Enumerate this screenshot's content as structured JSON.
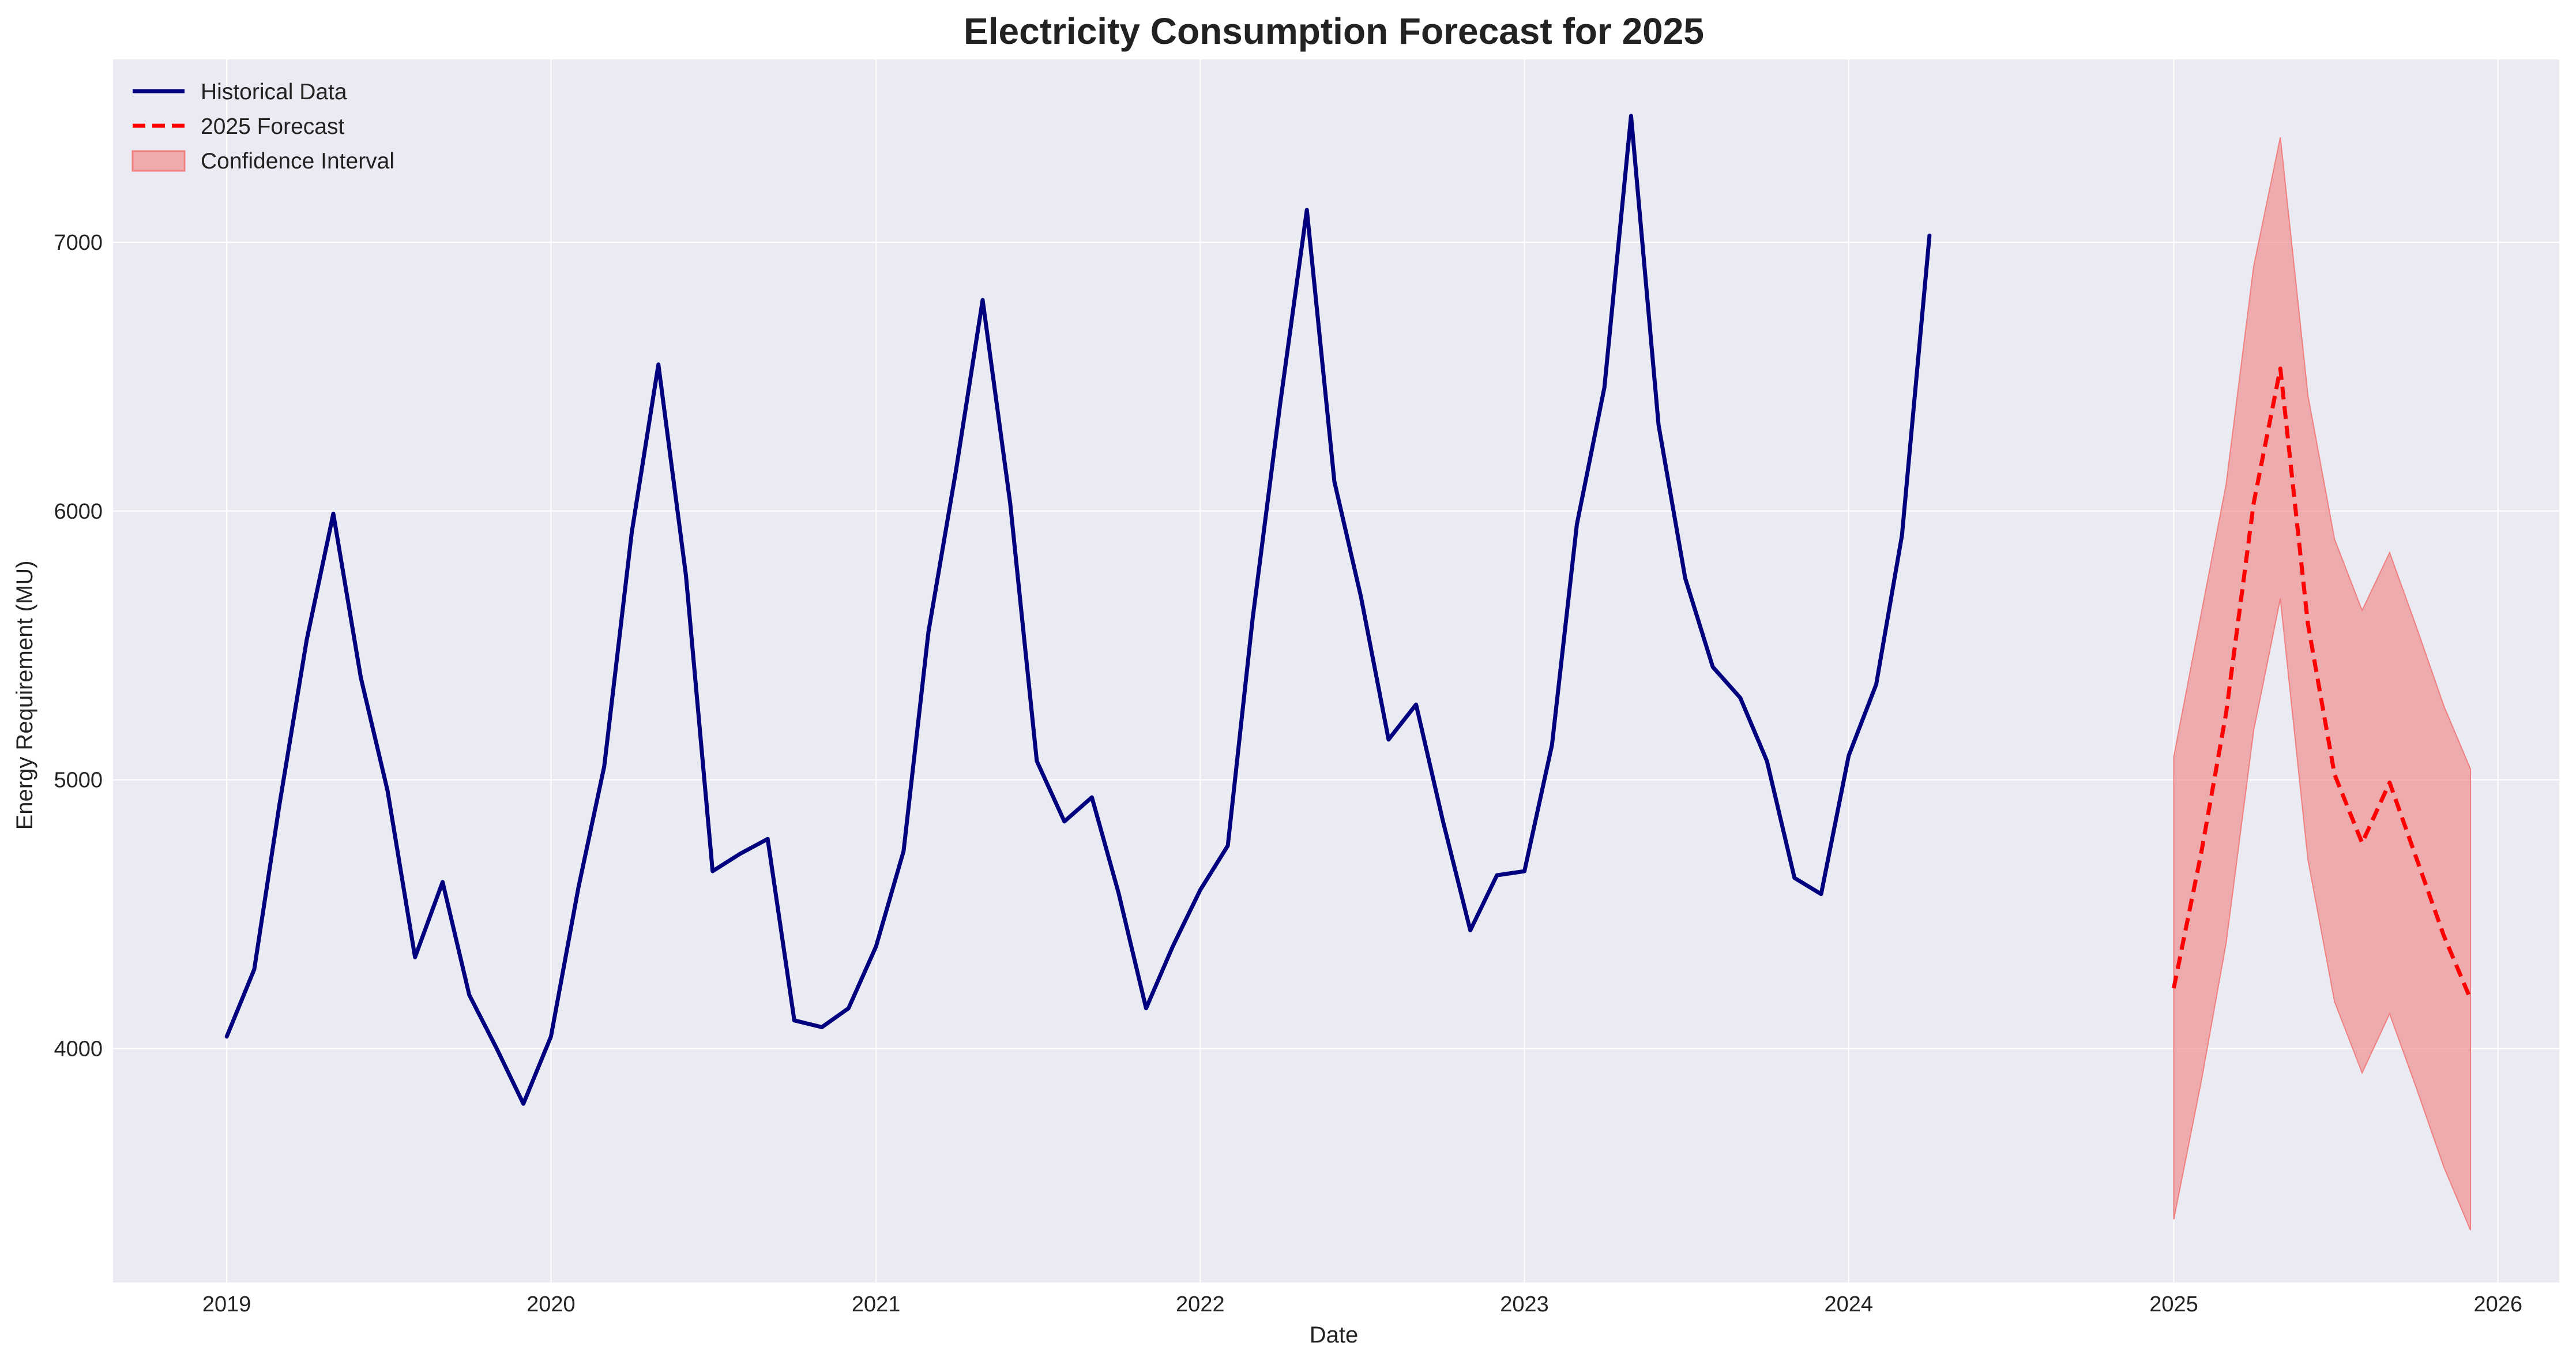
{
  "chart_data": {
    "type": "line",
    "title": "Electricity Consumption Forecast for 2025",
    "xlabel": "Date",
    "ylabel": "Energy Requirement (MU)",
    "xlim": [
      "2018-08-26",
      "2026-03-11"
    ],
    "ylim": [
      3130,
      7680
    ],
    "x_ticks": [
      "2019",
      "2020",
      "2021",
      "2022",
      "2023",
      "2024",
      "2025",
      "2026"
    ],
    "y_ticks": [
      4000,
      5000,
      6000,
      7000
    ],
    "grid": true,
    "legend": {
      "position": "top-left",
      "entries": [
        "Historical Data",
        "2025 Forecast",
        "Confidence Interval"
      ]
    },
    "colors": {
      "historical": "#00007f",
      "forecast": "#ff0000",
      "band_fill": "#f08080",
      "plot_background": "#eaeaf2"
    },
    "series": [
      {
        "name": "Historical Data",
        "style": "solid",
        "x": [
          "2019-01",
          "2019-02",
          "2019-03",
          "2019-04",
          "2019-05",
          "2019-06",
          "2019-07",
          "2019-08",
          "2019-09",
          "2019-10",
          "2019-11",
          "2019-12",
          "2020-01",
          "2020-02",
          "2020-03",
          "2020-04",
          "2020-05",
          "2020-06",
          "2020-07",
          "2020-08",
          "2020-09",
          "2020-10",
          "2020-11",
          "2020-12",
          "2021-01",
          "2021-02",
          "2021-03",
          "2021-04",
          "2021-05",
          "2021-06",
          "2021-07",
          "2021-08",
          "2021-09",
          "2021-10",
          "2021-11",
          "2021-12",
          "2022-01",
          "2022-02",
          "2022-03",
          "2022-04",
          "2022-05",
          "2022-06",
          "2022-07",
          "2022-08",
          "2022-09",
          "2022-10",
          "2022-11",
          "2022-12",
          "2023-01",
          "2023-02",
          "2023-03",
          "2023-04",
          "2023-05",
          "2023-06",
          "2023-07",
          "2023-08",
          "2023-09",
          "2023-10",
          "2023-11",
          "2023-12",
          "2024-01",
          "2024-02",
          "2024-03",
          "2024-04"
        ],
        "values": [
          4045,
          4295,
          4900,
          5520,
          5990,
          5380,
          4960,
          4340,
          4620,
          4200,
          4000,
          3795,
          4045,
          4600,
          5050,
          5920,
          6545,
          5760,
          4660,
          4725,
          4780,
          4105,
          4080,
          4150,
          4380,
          4735,
          5550,
          6150,
          6785,
          6030,
          5070,
          4845,
          4935,
          4580,
          4150,
          4380,
          4590,
          4755,
          5600,
          6400,
          7120,
          6110,
          5680,
          5150,
          5280,
          4850,
          4440,
          4645,
          4660,
          5130,
          5950,
          6460,
          7470,
          6320,
          5750,
          5420,
          5305,
          5070,
          4635,
          4575,
          5090,
          5355,
          5910,
          7025
        ]
      },
      {
        "name": "2025 Forecast",
        "style": "dashed",
        "x": [
          "2025-01",
          "2025-02",
          "2025-03",
          "2025-04",
          "2025-05",
          "2025-06",
          "2025-07",
          "2025-08",
          "2025-09",
          "2025-10",
          "2025-11",
          "2025-12"
        ],
        "values": [
          4225,
          4730,
          5250,
          6030,
          6530,
          5580,
          5020,
          4765,
          4990,
          4710,
          4420,
          4185
        ]
      }
    ],
    "confidence_interval": {
      "name": "Confidence Interval",
      "x": [
        "2025-01",
        "2025-02",
        "2025-03",
        "2025-04",
        "2025-05",
        "2025-06",
        "2025-07",
        "2025-08",
        "2025-09",
        "2025-10",
        "2025-11",
        "2025-12"
      ],
      "lower": [
        3365,
        3880,
        4395,
        5185,
        5675,
        4705,
        4175,
        3910,
        4130,
        3855,
        3560,
        3325
      ],
      "upper": [
        5085,
        5620,
        6100,
        6910,
        7390,
        6430,
        5895,
        5630,
        5845,
        5570,
        5275,
        5040
      ]
    }
  }
}
